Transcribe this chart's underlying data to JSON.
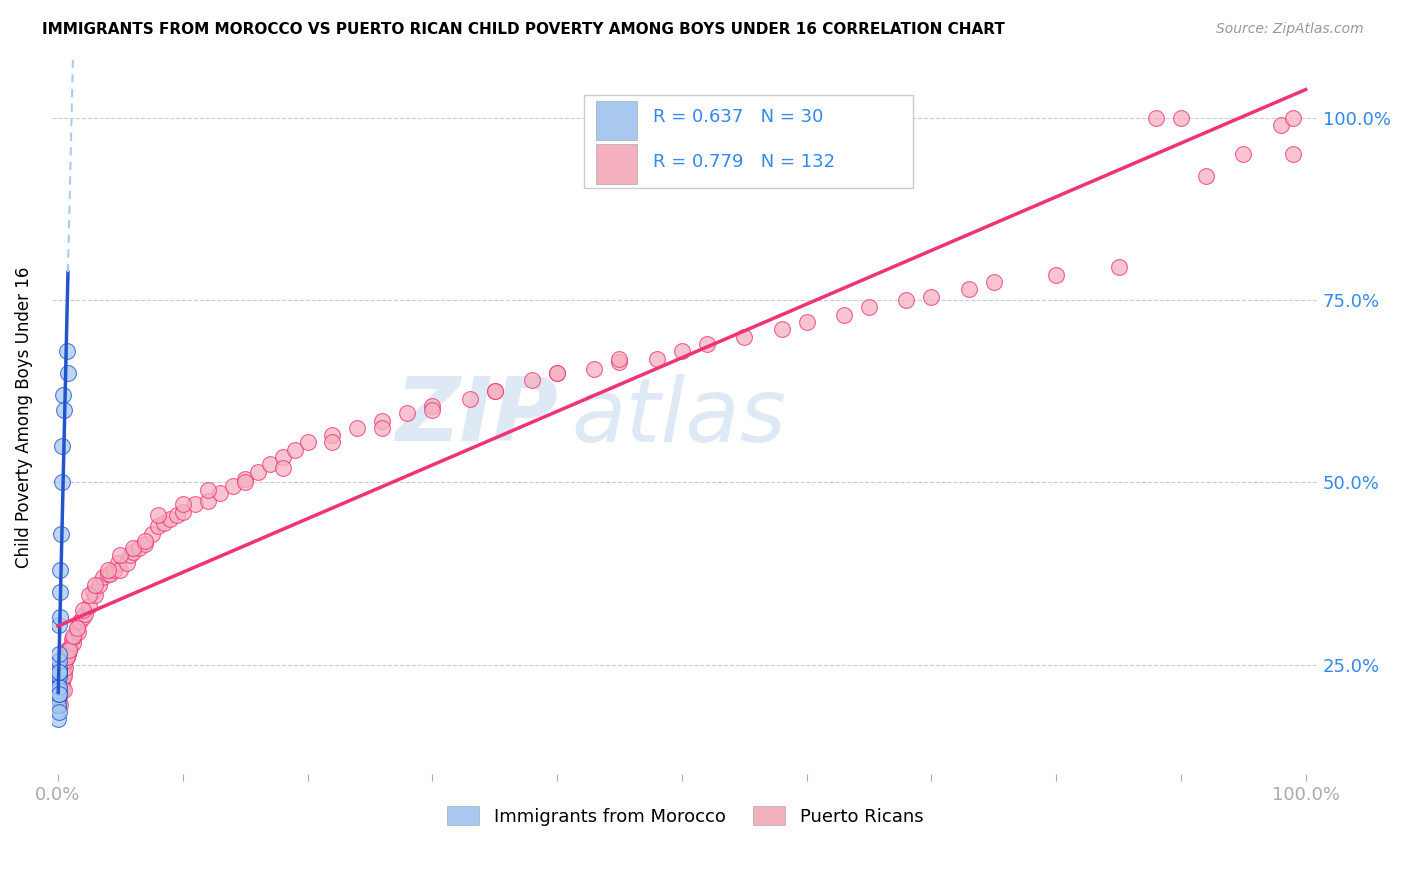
{
  "title": "IMMIGRANTS FROM MOROCCO VS PUERTO RICAN CHILD POVERTY AMONG BOYS UNDER 16 CORRELATION CHART",
  "source": "Source: ZipAtlas.com",
  "ylabel": "Child Poverty Among Boys Under 16",
  "legend_label1": "Immigrants from Morocco",
  "legend_label2": "Puerto Ricans",
  "R1": 0.637,
  "N1": 30,
  "R2": 0.779,
  "N2": 132,
  "color_blue": "#A8C8F0",
  "color_pink": "#F5B0C0",
  "line_blue": "#2255CC",
  "line_pink": "#EE3377",
  "line_blue_dash": "#AACCEE",
  "axis_color": "#3388EE",
  "watermark_zip": "ZIP",
  "watermark_atlas": "atlas",
  "blue_points_x": [
    0.0002,
    0.0002,
    0.0003,
    0.0003,
    0.0003,
    0.0004,
    0.0004,
    0.0005,
    0.0005,
    0.0005,
    0.0006,
    0.0006,
    0.0007,
    0.0007,
    0.0008,
    0.0008,
    0.0009,
    0.001,
    0.001,
    0.0012,
    0.0013,
    0.0015,
    0.002,
    0.0025,
    0.003,
    0.0035,
    0.004,
    0.005,
    0.007,
    0.008
  ],
  "blue_points_y": [
    0.195,
    0.225,
    0.175,
    0.205,
    0.235,
    0.195,
    0.22,
    0.185,
    0.215,
    0.24,
    0.21,
    0.235,
    0.22,
    0.245,
    0.21,
    0.24,
    0.255,
    0.24,
    0.265,
    0.305,
    0.315,
    0.35,
    0.38,
    0.43,
    0.5,
    0.55,
    0.62,
    0.6,
    0.68,
    0.65
  ],
  "pink_points_x": [
    0.0003,
    0.0004,
    0.0005,
    0.0006,
    0.0006,
    0.0007,
    0.0007,
    0.0008,
    0.0009,
    0.001,
    0.001,
    0.0012,
    0.0013,
    0.0015,
    0.0016,
    0.0018,
    0.002,
    0.002,
    0.0022,
    0.0025,
    0.003,
    0.003,
    0.0032,
    0.0035,
    0.004,
    0.004,
    0.0045,
    0.005,
    0.005,
    0.006,
    0.006,
    0.007,
    0.007,
    0.008,
    0.009,
    0.01,
    0.011,
    0.012,
    0.013,
    0.015,
    0.016,
    0.018,
    0.02,
    0.022,
    0.025,
    0.028,
    0.03,
    0.033,
    0.036,
    0.04,
    0.042,
    0.045,
    0.048,
    0.05,
    0.055,
    0.058,
    0.06,
    0.065,
    0.07,
    0.075,
    0.08,
    0.085,
    0.09,
    0.095,
    0.1,
    0.11,
    0.12,
    0.13,
    0.14,
    0.15,
    0.16,
    0.17,
    0.18,
    0.19,
    0.2,
    0.22,
    0.24,
    0.26,
    0.28,
    0.3,
    0.33,
    0.35,
    0.38,
    0.4,
    0.43,
    0.45,
    0.48,
    0.5,
    0.52,
    0.55,
    0.58,
    0.6,
    0.63,
    0.65,
    0.68,
    0.7,
    0.73,
    0.75,
    0.8,
    0.85,
    0.88,
    0.9,
    0.92,
    0.95,
    0.98,
    0.99,
    0.99,
    0.002,
    0.003,
    0.005,
    0.007,
    0.009,
    0.012,
    0.015,
    0.02,
    0.025,
    0.03,
    0.04,
    0.05,
    0.06,
    0.07,
    0.08,
    0.1,
    0.12,
    0.15,
    0.18,
    0.22,
    0.26,
    0.3,
    0.35,
    0.4,
    0.45
  ],
  "pink_points_y": [
    0.205,
    0.195,
    0.215,
    0.225,
    0.21,
    0.23,
    0.205,
    0.22,
    0.215,
    0.21,
    0.235,
    0.22,
    0.225,
    0.23,
    0.215,
    0.225,
    0.235,
    0.22,
    0.24,
    0.22,
    0.235,
    0.225,
    0.245,
    0.23,
    0.235,
    0.25,
    0.24,
    0.25,
    0.235,
    0.245,
    0.255,
    0.26,
    0.27,
    0.265,
    0.27,
    0.275,
    0.285,
    0.28,
    0.29,
    0.3,
    0.295,
    0.31,
    0.315,
    0.32,
    0.33,
    0.35,
    0.345,
    0.36,
    0.37,
    0.375,
    0.375,
    0.38,
    0.39,
    0.38,
    0.39,
    0.4,
    0.405,
    0.41,
    0.415,
    0.43,
    0.44,
    0.445,
    0.45,
    0.455,
    0.46,
    0.47,
    0.475,
    0.485,
    0.495,
    0.505,
    0.515,
    0.525,
    0.535,
    0.545,
    0.555,
    0.565,
    0.575,
    0.585,
    0.595,
    0.605,
    0.615,
    0.625,
    0.64,
    0.65,
    0.655,
    0.665,
    0.67,
    0.68,
    0.69,
    0.7,
    0.71,
    0.72,
    0.73,
    0.74,
    0.75,
    0.755,
    0.765,
    0.775,
    0.785,
    0.795,
    1.0,
    1.0,
    0.92,
    0.95,
    0.99,
    1.0,
    0.95,
    0.195,
    0.215,
    0.215,
    0.26,
    0.27,
    0.29,
    0.3,
    0.325,
    0.345,
    0.36,
    0.38,
    0.4,
    0.41,
    0.42,
    0.455,
    0.47,
    0.49,
    0.5,
    0.52,
    0.555,
    0.575,
    0.6,
    0.625,
    0.65,
    0.67
  ]
}
